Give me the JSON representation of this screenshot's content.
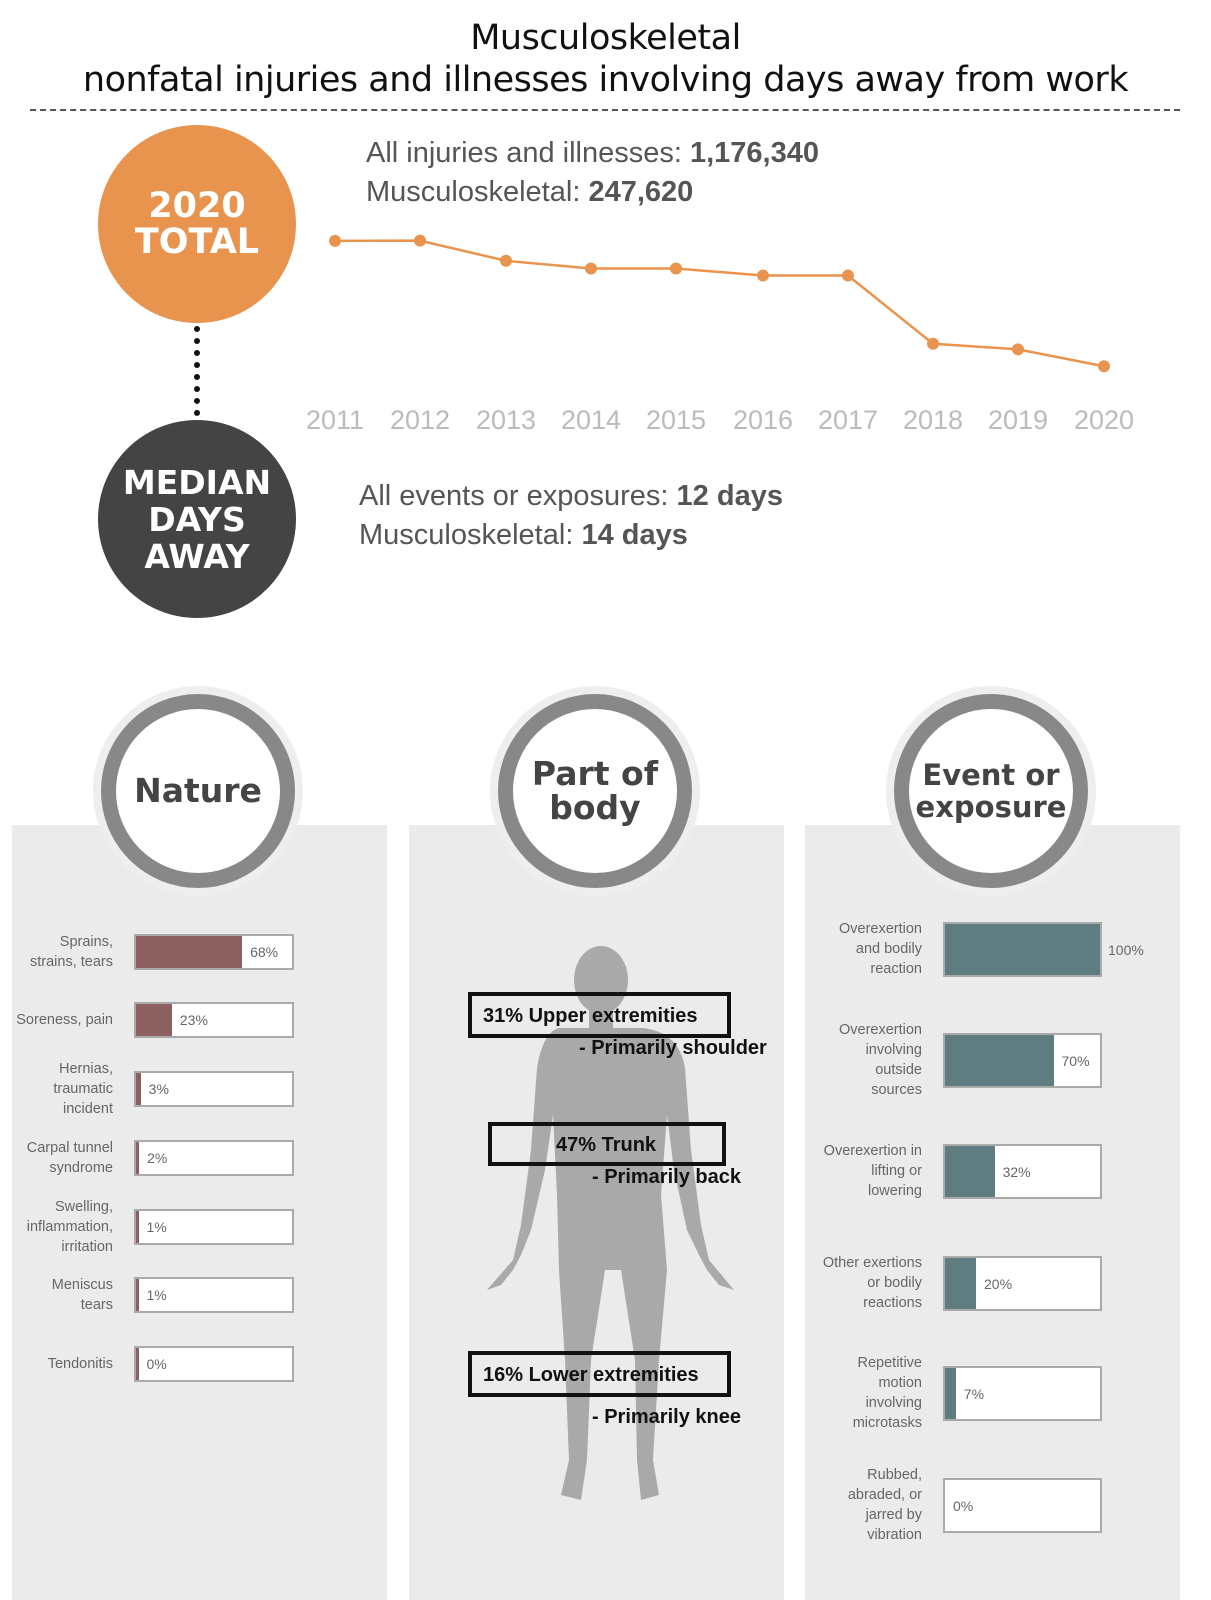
{
  "header": {
    "title_line1": "Musculoskeletal",
    "title_line2": "nonfatal injuries and illnesses involving days away from work"
  },
  "total_badge": {
    "line1": "2020",
    "line2": "TOTAL",
    "color": "#E8944E"
  },
  "median_badge": {
    "line1": "MEDIAN",
    "line2": "DAYS",
    "line3": "AWAY",
    "color": "#444444"
  },
  "stats_total": {
    "all_label": "All injuries and illnesses: ",
    "all_value": "1,176,340",
    "msk_label": "Musculoskeletal: ",
    "msk_value": "247,620"
  },
  "stats_median": {
    "all_label": "All events or exposures: ",
    "all_value": "12 days",
    "msk_label": "Musculoskeletal: ",
    "msk_value": "14 days"
  },
  "chart_data": [
    {
      "type": "line",
      "title": "",
      "x": [
        "2011",
        "2012",
        "2013",
        "2014",
        "2015",
        "2016",
        "2017",
        "2018",
        "2019",
        "2020"
      ],
      "values": [
        387820,
        388060,
        365580,
        356910,
        356910,
        349050,
        349050,
        272780,
        266530,
        247620
      ],
      "ylim": [
        230000,
        400000
      ],
      "color": "#E8944E",
      "grid": false
    },
    {
      "type": "bar",
      "title": "Nature",
      "categories": [
        "Sprains, strains, tears",
        "Soreness, pain",
        "Hernias, traumatic incident",
        "Carpal tunnel syndrome",
        "Swelling, inflammation, irritation",
        "Meniscus tears",
        "Tendonitis"
      ],
      "values": [
        68,
        23,
        3,
        2,
        1,
        1,
        0
      ],
      "value_labels": [
        "68%",
        "23%",
        "3%",
        "2%",
        "1%",
        "1%",
        "0%"
      ],
      "color": "#8C6060",
      "xlim": [
        0,
        100
      ]
    },
    {
      "type": "bar",
      "title": "Event or exposure",
      "categories": [
        "Overexertion and bodily reaction",
        "Overexertion involving outside sources",
        "Overexertion in lifting or lowering",
        "Other exertions or bodily reactions",
        "Repetitive motion involving microtasks",
        "Rubbed, abraded, or jarred by vibration"
      ],
      "values": [
        100,
        70,
        32,
        20,
        7,
        0
      ],
      "value_labels": [
        "100%",
        "70%",
        "32%",
        "20%",
        "7%",
        "0%"
      ],
      "color": "#5F7C80",
      "xlim": [
        0,
        100
      ]
    }
  ],
  "panels": {
    "nature": {
      "title": "Nature"
    },
    "body": {
      "title_line1": "Part of",
      "title_line2": "body"
    },
    "event": {
      "title_line1": "Event or",
      "title_line2": "exposure"
    }
  },
  "nature_rows": [
    {
      "line1": "Sprains,",
      "line2": "strains, tears",
      "line3": ""
    },
    {
      "line1": "Soreness, pain",
      "line2": "",
      "line3": ""
    },
    {
      "line1": "Hernias,",
      "line2": "traumatic",
      "line3": "incident"
    },
    {
      "line1": "Carpal tunnel",
      "line2": "syndrome",
      "line3": ""
    },
    {
      "line1": "Swelling,",
      "line2": "inflammation,",
      "line3": "irritation"
    },
    {
      "line1": "Meniscus",
      "line2": "tears",
      "line3": ""
    },
    {
      "line1": "Tendonitis",
      "line2": "",
      "line3": ""
    }
  ],
  "event_rows": [
    {
      "line1": "Overexertion",
      "line2": "and bodily",
      "line3": "reaction",
      "line4": ""
    },
    {
      "line1": "Overexertion",
      "line2": "involving",
      "line3": "outside",
      "line4": "sources"
    },
    {
      "line1": "Overexertion in",
      "line2": "lifting or",
      "line3": "lowering",
      "line4": ""
    },
    {
      "line1": "Other exertions",
      "line2": "or bodily",
      "line3": "reactions",
      "line4": ""
    },
    {
      "line1": "Repetitive",
      "line2": "motion",
      "line3": "involving",
      "line4": "microtasks"
    },
    {
      "line1": "Rubbed,",
      "line2": "abraded, or",
      "line3": "jarred by",
      "line4": "vibration"
    }
  ],
  "body_parts": {
    "upper": {
      "label": "31% Upper extremities",
      "sub": "- Primarily shoulder"
    },
    "trunk": {
      "label": "47% Trunk",
      "sub": "- Primarily back"
    },
    "lower": {
      "label": "16% Lower extremities",
      "sub": "- Primarily knee"
    }
  }
}
